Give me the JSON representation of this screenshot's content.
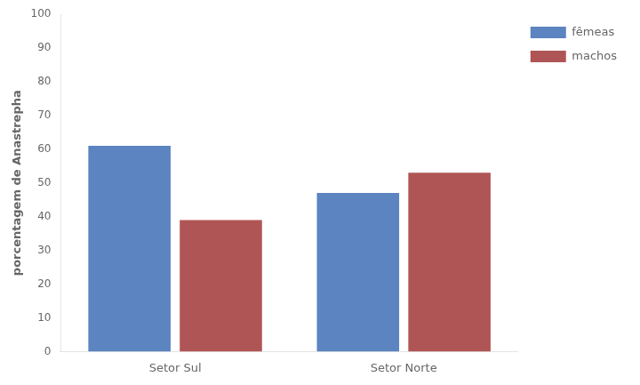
{
  "chart_data": {
    "type": "bar",
    "categories": [
      "Setor Sul",
      "Setor Norte"
    ],
    "series": [
      {
        "name": "fêmeas",
        "color": "#5B84C0",
        "values": [
          61,
          47
        ]
      },
      {
        "name": "machos",
        "color": "#B05555",
        "values": [
          39,
          53
        ]
      }
    ],
    "ylabel": "porcentagem de Anastrepha",
    "ylim": [
      0,
      100
    ],
    "yticks": [
      0,
      10,
      20,
      30,
      40,
      50,
      60,
      70,
      80,
      90,
      100
    ],
    "grid": false,
    "legend": "upper right"
  }
}
